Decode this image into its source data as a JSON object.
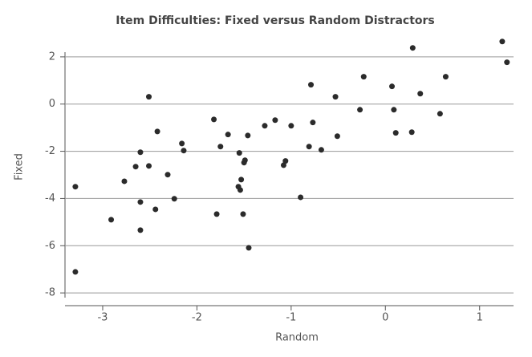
{
  "chart_data": {
    "type": "scatter",
    "title": "Item Difficulties: Fixed versus Random Distractors",
    "x_label": "Random",
    "y_label": "Fixed",
    "color": "#2b2b2b",
    "grid": true,
    "xlim": [
      -3.4,
      1.36
    ],
    "ylim": [
      -8.2,
      2.2
    ],
    "xticks": [
      -3,
      -2,
      -1,
      0,
      1
    ],
    "yticks": [
      2,
      0,
      -2,
      -4,
      -6,
      -8
    ],
    "x": [
      -3.29,
      -3.29,
      -2.91,
      -2.77,
      -2.65,
      -2.6,
      -2.6,
      -2.6,
      -2.51,
      -2.51,
      -2.44,
      -2.42,
      -2.31,
      -2.24,
      -2.16,
      -2.14,
      -1.82,
      -1.79,
      -1.75,
      -1.67,
      -1.55,
      -1.53,
      -1.56,
      -1.54,
      -1.51,
      -1.49,
      -1.5,
      -1.46,
      -1.45,
      -1.28,
      -1.17,
      -1.08,
      -1.06,
      -1.0,
      -0.9,
      -0.81,
      -0.79,
      -0.77,
      -0.68,
      -0.53,
      -0.51,
      -0.27,
      -0.23,
      0.07,
      0.09,
      0.11,
      0.29,
      0.28,
      0.37,
      0.58,
      0.64,
      1.24,
      1.29
    ],
    "values": [
      -3.5,
      -7.11,
      -4.9,
      -3.27,
      -2.65,
      -2.04,
      -4.15,
      -5.34,
      0.31,
      -2.62,
      -4.46,
      -1.16,
      -2.99,
      -4.01,
      -1.67,
      -1.97,
      -0.65,
      -4.66,
      -1.8,
      -1.29,
      -2.07,
      -3.2,
      -3.5,
      -3.64,
      -4.66,
      -2.38,
      -2.48,
      -1.33,
      -6.09,
      -0.92,
      -0.68,
      -2.59,
      -2.41,
      -0.92,
      -3.95,
      -1.8,
      0.82,
      -0.78,
      -1.94,
      0.31,
      -1.36,
      -0.24,
      1.16,
      0.75,
      -0.24,
      -1.22,
      2.38,
      -1.19,
      0.44,
      -0.41,
      1.16,
      2.65,
      1.77
    ]
  }
}
